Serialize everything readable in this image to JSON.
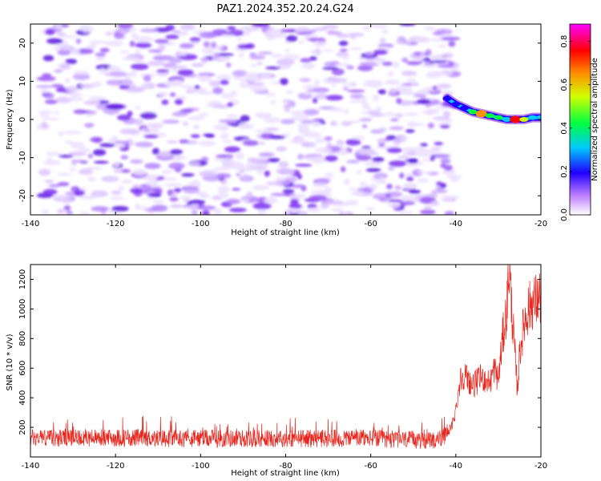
{
  "title": "PAZ1.2024.352.20.24.G24",
  "colors": {
    "snr_line": "#e8261e",
    "spec_low": "#e8d8ff",
    "spec_mid": "#8a2be2",
    "spec_high": "#3010c0"
  },
  "chart_data": [
    {
      "type": "heatmap",
      "xlabel": "Height of straight line (km)",
      "ylabel": "Frequency (Hz)",
      "xlim": [
        -140,
        -20
      ],
      "ylim": [
        -25,
        25
      ],
      "xticks": [
        -140,
        -120,
        -100,
        -80,
        -60,
        -40,
        -20
      ],
      "yticks": [
        -20,
        -10,
        0,
        10,
        20
      ],
      "noise_region_x": [
        -137,
        -40
      ],
      "noise_level_range": [
        0.0,
        0.15
      ],
      "signal_track": [
        {
          "x": -42,
          "y": 5.5,
          "v": 0.25
        },
        {
          "x": -40,
          "y": 4.0,
          "v": 0.3
        },
        {
          "x": -38,
          "y": 3.0,
          "v": 0.35
        },
        {
          "x": -36,
          "y": 2.0,
          "v": 0.5
        },
        {
          "x": -34,
          "y": 1.5,
          "v": 0.8
        },
        {
          "x": -32,
          "y": 1.0,
          "v": 0.55
        },
        {
          "x": -30,
          "y": 0.5,
          "v": 0.5
        },
        {
          "x": -28,
          "y": 0.0,
          "v": 0.45
        },
        {
          "x": -26,
          "y": 0.0,
          "v": 0.9
        },
        {
          "x": -24,
          "y": 0.0,
          "v": 0.6
        },
        {
          "x": -22,
          "y": 0.5,
          "v": 0.45
        },
        {
          "x": -20,
          "y": 0.5,
          "v": 0.4
        }
      ],
      "grid": false
    },
    {
      "type": "colorbar",
      "label": "Normalized spectral amplitude",
      "ticks": [
        0.0,
        0.2,
        0.4,
        0.6,
        0.8
      ],
      "range": [
        0.0,
        0.88
      ]
    },
    {
      "type": "line",
      "xlabel": "Height of straight line (km)",
      "ylabel": "SNR (10 * v/v)",
      "xlim": [
        -140,
        -20
      ],
      "ylim": [
        0,
        1300
      ],
      "xticks": [
        -140,
        -120,
        -100,
        -80,
        -60,
        -40,
        -20
      ],
      "yticks": [
        200,
        400,
        600,
        800,
        1000,
        1200
      ],
      "series_trend": [
        {
          "x": -140,
          "y": 130
        },
        {
          "x": -120,
          "y": 130
        },
        {
          "x": -100,
          "y": 125
        },
        {
          "x": -80,
          "y": 125
        },
        {
          "x": -60,
          "y": 125
        },
        {
          "x": -46,
          "y": 110
        },
        {
          "x": -43,
          "y": 130
        },
        {
          "x": -41,
          "y": 200
        },
        {
          "x": -40,
          "y": 320
        },
        {
          "x": -39,
          "y": 520
        },
        {
          "x": -38,
          "y": 560
        },
        {
          "x": -36,
          "y": 480
        },
        {
          "x": -34,
          "y": 540
        },
        {
          "x": -32,
          "y": 500
        },
        {
          "x": -31,
          "y": 600
        },
        {
          "x": -30,
          "y": 520
        },
        {
          "x": -29,
          "y": 800
        },
        {
          "x": -28,
          "y": 1000
        },
        {
          "x": -27.5,
          "y": 1290
        },
        {
          "x": -26.5,
          "y": 850
        },
        {
          "x": -25.5,
          "y": 450
        },
        {
          "x": -25,
          "y": 700
        },
        {
          "x": -24,
          "y": 900
        },
        {
          "x": -23,
          "y": 1000
        },
        {
          "x": -22,
          "y": 1040
        },
        {
          "x": -21,
          "y": 1060
        },
        {
          "x": -20,
          "y": 1080
        }
      ],
      "noise_amplitude": 60,
      "grid": false
    }
  ]
}
